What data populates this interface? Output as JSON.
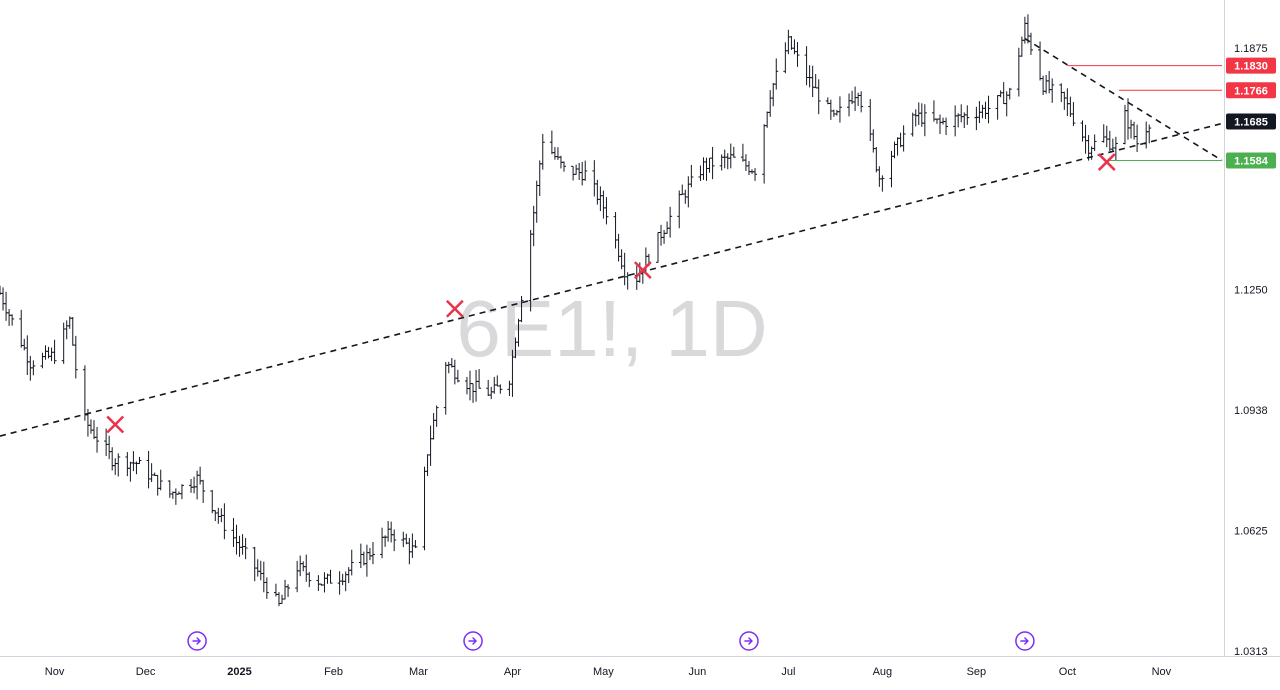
{
  "chart_data": {
    "type": "ohlc",
    "symbol_watermark": "6E1!, 1D",
    "price_scale": {
      "ylim": [
        1.03,
        1.2
      ],
      "ticks": [
        "1.1875",
        "1.1250",
        "1.0938",
        "1.0625",
        "1.0313"
      ]
    },
    "time_axis": {
      "start": "2024-10-14",
      "end": "2025-11-21",
      "labels": [
        {
          "text": "Nov",
          "date": "2024-11-01",
          "bold": false
        },
        {
          "text": "Dec",
          "date": "2024-12-01",
          "bold": false
        },
        {
          "text": "2025",
          "date": "2025-01-01",
          "bold": true
        },
        {
          "text": "Feb",
          "date": "2025-02-01",
          "bold": false
        },
        {
          "text": "Mar",
          "date": "2025-03-01",
          "bold": false
        },
        {
          "text": "Apr",
          "date": "2025-04-01",
          "bold": false
        },
        {
          "text": "May",
          "date": "2025-05-01",
          "bold": false
        },
        {
          "text": "Jun",
          "date": "2025-06-01",
          "bold": false
        },
        {
          "text": "Jul",
          "date": "2025-07-01",
          "bold": false
        },
        {
          "text": "Aug",
          "date": "2025-08-01",
          "bold": false
        },
        {
          "text": "Sep",
          "date": "2025-09-01",
          "bold": false
        },
        {
          "text": "Oct",
          "date": "2025-10-01",
          "bold": false
        },
        {
          "text": "Nov",
          "date": "2025-11-01",
          "bold": false
        }
      ]
    },
    "series": [
      {
        "name": "",
        "dates": [
          "2024-10-14",
          "2024-10-24",
          "2024-11-01",
          "2024-11-06",
          "2024-11-10",
          "2024-11-20",
          "2024-11-28",
          "2024-12-09",
          "2024-12-18",
          "2024-12-26",
          "2025-01-06",
          "2025-01-14",
          "2025-01-20",
          "2025-01-28",
          "2025-02-04",
          "2025-02-12",
          "2025-02-20",
          "2025-02-28",
          "2025-03-04",
          "2025-03-10",
          "2025-03-18",
          "2025-03-25",
          "2025-03-31",
          "2025-04-08",
          "2025-04-11",
          "2025-04-18",
          "2025-04-25",
          "2025-05-02",
          "2025-05-08",
          "2025-05-12",
          "2025-05-19",
          "2025-05-26",
          "2025-06-03",
          "2025-06-12",
          "2025-06-20",
          "2025-06-25",
          "2025-07-01",
          "2025-07-08",
          "2025-07-16",
          "2025-07-24",
          "2025-07-31",
          "2025-08-04",
          "2025-08-12",
          "2025-08-20",
          "2025-08-28",
          "2025-09-05",
          "2025-09-12",
          "2025-09-17",
          "2025-09-23",
          "2025-09-30",
          "2025-10-08",
          "2025-10-13",
          "2025-10-17",
          "2025-10-20",
          "2025-10-24",
          "2025-10-28"
        ],
        "close": [
          1.124,
          1.106,
          1.108,
          1.117,
          1.092,
          1.081,
          1.08,
          1.072,
          1.076,
          1.065,
          1.053,
          1.043,
          1.053,
          1.049,
          1.051,
          1.056,
          1.062,
          1.057,
          1.083,
          1.106,
          1.1,
          1.098,
          1.102,
          1.145,
          1.164,
          1.156,
          1.155,
          1.145,
          1.13,
          1.128,
          1.138,
          1.148,
          1.157,
          1.159,
          1.156,
          1.176,
          1.189,
          1.179,
          1.169,
          1.177,
          1.154,
          1.16,
          1.17,
          1.168,
          1.17,
          1.172,
          1.176,
          1.193,
          1.178,
          1.174,
          1.162,
          1.164,
          1.162,
          1.17,
          1.163,
          1.1685
        ]
      }
    ],
    "trendlines": [
      {
        "name": "rising support",
        "style": "dashed",
        "color": "#131722",
        "p1": {
          "date": "2024-10-14",
          "price": 1.087
        },
        "p2": {
          "date": "2025-11-21",
          "price": 1.168
        }
      },
      {
        "name": "falling resistance",
        "style": "dashed",
        "color": "#131722",
        "p1": {
          "date": "2025-09-17",
          "price": 1.19
        },
        "p2": {
          "date": "2025-11-21",
          "price": 1.1584
        }
      }
    ],
    "touch_markers": [
      {
        "date": "2024-11-21",
        "price": 1.09
      },
      {
        "date": "2025-03-13",
        "price": 1.12
      },
      {
        "date": "2025-05-14",
        "price": 1.13
      },
      {
        "date": "2025-10-14",
        "price": 1.158
      }
    ],
    "horizontal_levels": [
      {
        "price": 1.183,
        "label": "1.1830",
        "color": "#f23645",
        "from": "2025-10-01"
      },
      {
        "price": 1.1766,
        "label": "1.1766",
        "color": "#f23645",
        "from": "2025-10-18"
      },
      {
        "price": 1.1584,
        "label": "1.1584",
        "color": "#4caf50",
        "from": "2025-10-14"
      }
    ],
    "last_price": {
      "label": "1.1685",
      "price": 1.1685,
      "color": "#131722"
    },
    "event_markers": {
      "icon": "arrow-circle-icon",
      "color": "#7b2ff7",
      "dates": [
        "2024-12-18",
        "2025-03-19",
        "2025-06-18",
        "2025-09-17"
      ]
    },
    "grid": false,
    "legend": "none"
  }
}
